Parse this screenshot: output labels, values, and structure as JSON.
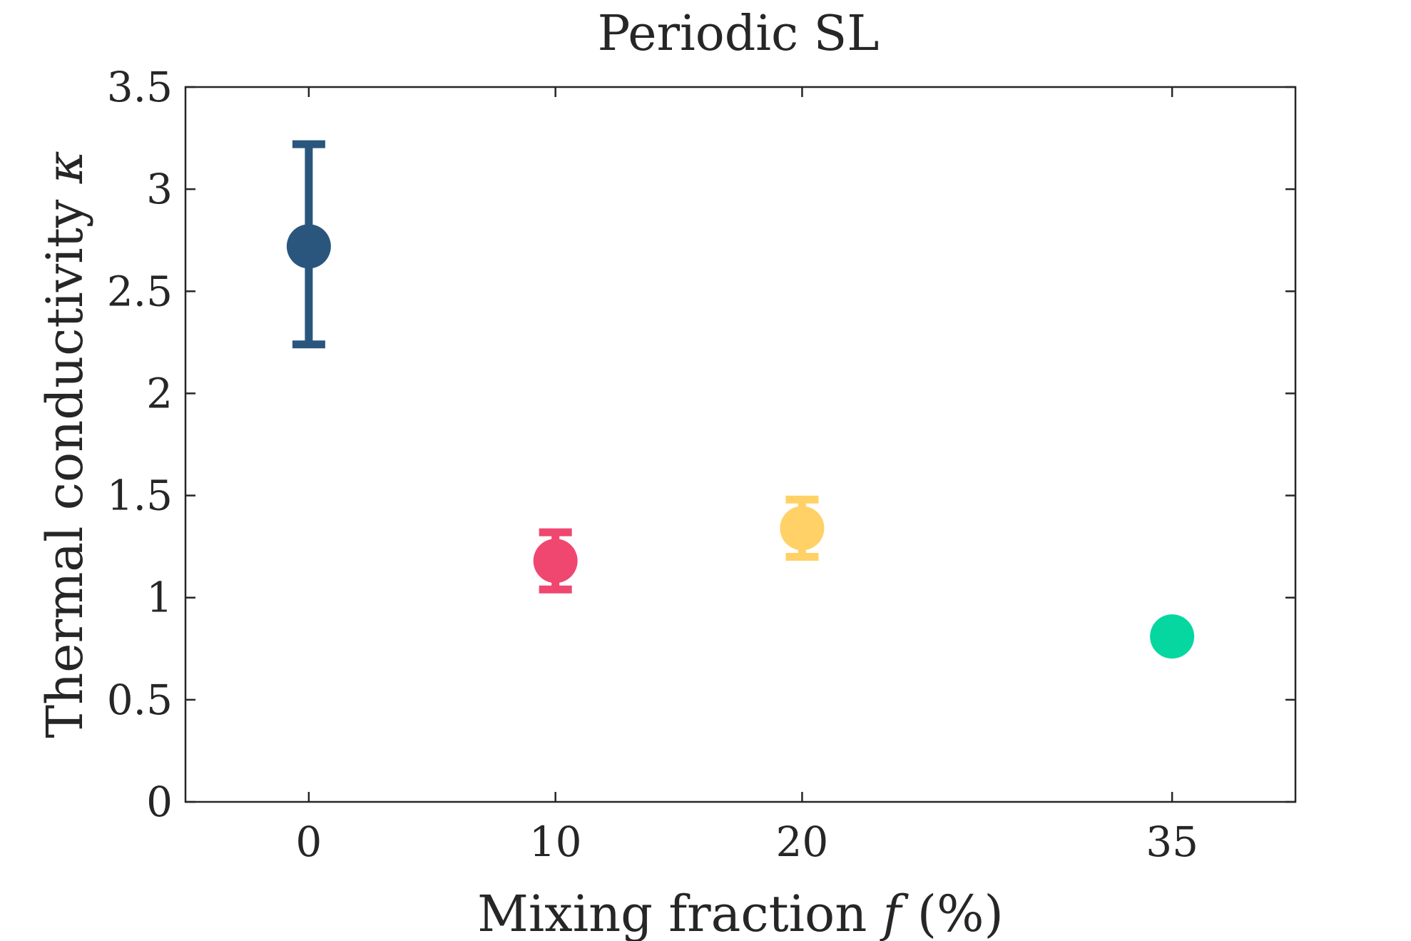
{
  "chart_data": {
    "type": "scatter",
    "title": "Periodic SL",
    "xlabel_main": "Mixing fraction ",
    "xlabel_var": "f",
    "xlabel_unit": " (%)",
    "ylabel_main": "Thermal conductivity ",
    "ylabel_var": "κ",
    "xlim": [
      -5,
      40
    ],
    "ylim": [
      0,
      3.5
    ],
    "xticks": [
      0,
      10,
      20,
      35
    ],
    "xtick_labels": [
      "0",
      "10",
      "20",
      "35"
    ],
    "yticks": [
      0,
      0.5,
      1,
      1.5,
      2,
      2.5,
      3,
      3.5
    ],
    "ytick_labels": [
      "0",
      "0.5",
      "1",
      "1.5",
      "2",
      "2.5",
      "3",
      "3.5"
    ],
    "grid": false,
    "points": [
      {
        "x": 0,
        "y": 2.72,
        "err_low": 2.24,
        "err_high": 3.22,
        "color": "#2a567e"
      },
      {
        "x": 10,
        "y": 1.18,
        "err_low": 1.04,
        "err_high": 1.32,
        "color": "#ef476f"
      },
      {
        "x": 20,
        "y": 1.34,
        "err_low": 1.2,
        "err_high": 1.48,
        "color": "#ffd166"
      },
      {
        "x": 35,
        "y": 0.81,
        "err_low": 0.77,
        "err_high": 0.85,
        "color": "#06d6a0"
      }
    ],
    "axis_color": "#262626"
  }
}
